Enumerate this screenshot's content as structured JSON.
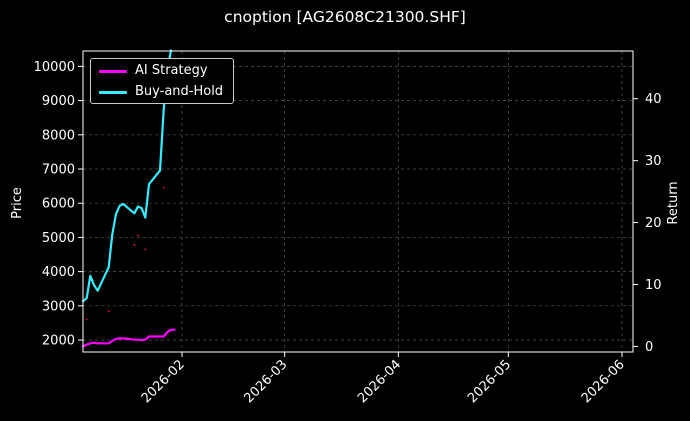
{
  "chart_data": {
    "type": "line",
    "title": "cnoption [AG2608C21300.SHF]",
    "ylabel": "Price",
    "y2label": "Return",
    "x_ticks": [
      "2026-02",
      "2026-03",
      "2026-04",
      "2026-05",
      "2026-06"
    ],
    "x_tick_dates": [
      "2026-02-01",
      "2026-03-01",
      "2026-04-01",
      "2026-05-01",
      "2026-06-01"
    ],
    "xlim": [
      "2026-01-05",
      "2026-06-04"
    ],
    "ylim": [
      1650,
      10450
    ],
    "y_ticks": [
      2000,
      3000,
      4000,
      5000,
      6000,
      7000,
      8000,
      9000,
      10000
    ],
    "y2lim": [
      -0.9,
      47.7
    ],
    "y2_ticks": [
      0,
      10,
      20,
      30,
      40
    ],
    "grid": true,
    "legend_position": "upper-left",
    "colors": {
      "background": "#000000",
      "axes": "#ffffff",
      "grid": "#555555",
      "ai": "#ff00ff",
      "buyhold": "#33eeff",
      "price": "#ff0055"
    },
    "series": [
      {
        "name": "AI Strategy",
        "axis": "right",
        "color": "#ff00ff",
        "x": [
          "2026-01-05",
          "2026-01-06",
          "2026-01-07",
          "2026-01-08",
          "2026-01-09",
          "2026-01-12",
          "2026-01-13",
          "2026-01-14",
          "2026-01-15",
          "2026-01-16",
          "2026-01-19",
          "2026-01-20",
          "2026-01-21",
          "2026-01-22",
          "2026-01-23",
          "2026-01-26",
          "2026-01-27",
          "2026-01-28",
          "2026-01-29",
          "2026-01-30"
        ],
        "values": [
          0.0,
          0.3,
          0.5,
          0.6,
          0.5,
          0.5,
          0.9,
          1.2,
          1.3,
          1.3,
          1.1,
          1.1,
          1.0,
          1.1,
          1.6,
          1.6,
          1.6,
          2.3,
          2.7,
          2.7
        ]
      },
      {
        "name": "Buy-and-Hold",
        "axis": "right",
        "color": "#33eeff",
        "x": [
          "2026-01-05",
          "2026-01-06",
          "2026-01-07",
          "2026-01-08",
          "2026-01-09",
          "2026-01-12",
          "2026-01-13",
          "2026-01-14",
          "2026-01-15",
          "2026-01-16",
          "2026-01-19",
          "2026-01-20",
          "2026-01-21",
          "2026-01-22",
          "2026-01-23",
          "2026-01-26",
          "2026-01-27",
          "2026-01-28",
          "2026-01-29"
        ],
        "values": [
          7.3,
          7.8,
          11.4,
          9.9,
          9.0,
          12.8,
          18.1,
          21.4,
          22.7,
          23.0,
          21.5,
          22.6,
          22.3,
          20.8,
          26.2,
          28.4,
          38.2,
          44.6,
          47.8
        ]
      },
      {
        "name": "",
        "axis": "left",
        "color": "#ff0055",
        "marker": "dot",
        "x": [
          "2026-01-06",
          "2026-01-12",
          "2026-01-19",
          "2026-01-20",
          "2026-01-22",
          "2026-01-27"
        ],
        "values": [
          2600,
          2840,
          4780,
          5060,
          4650,
          6460
        ]
      }
    ]
  }
}
